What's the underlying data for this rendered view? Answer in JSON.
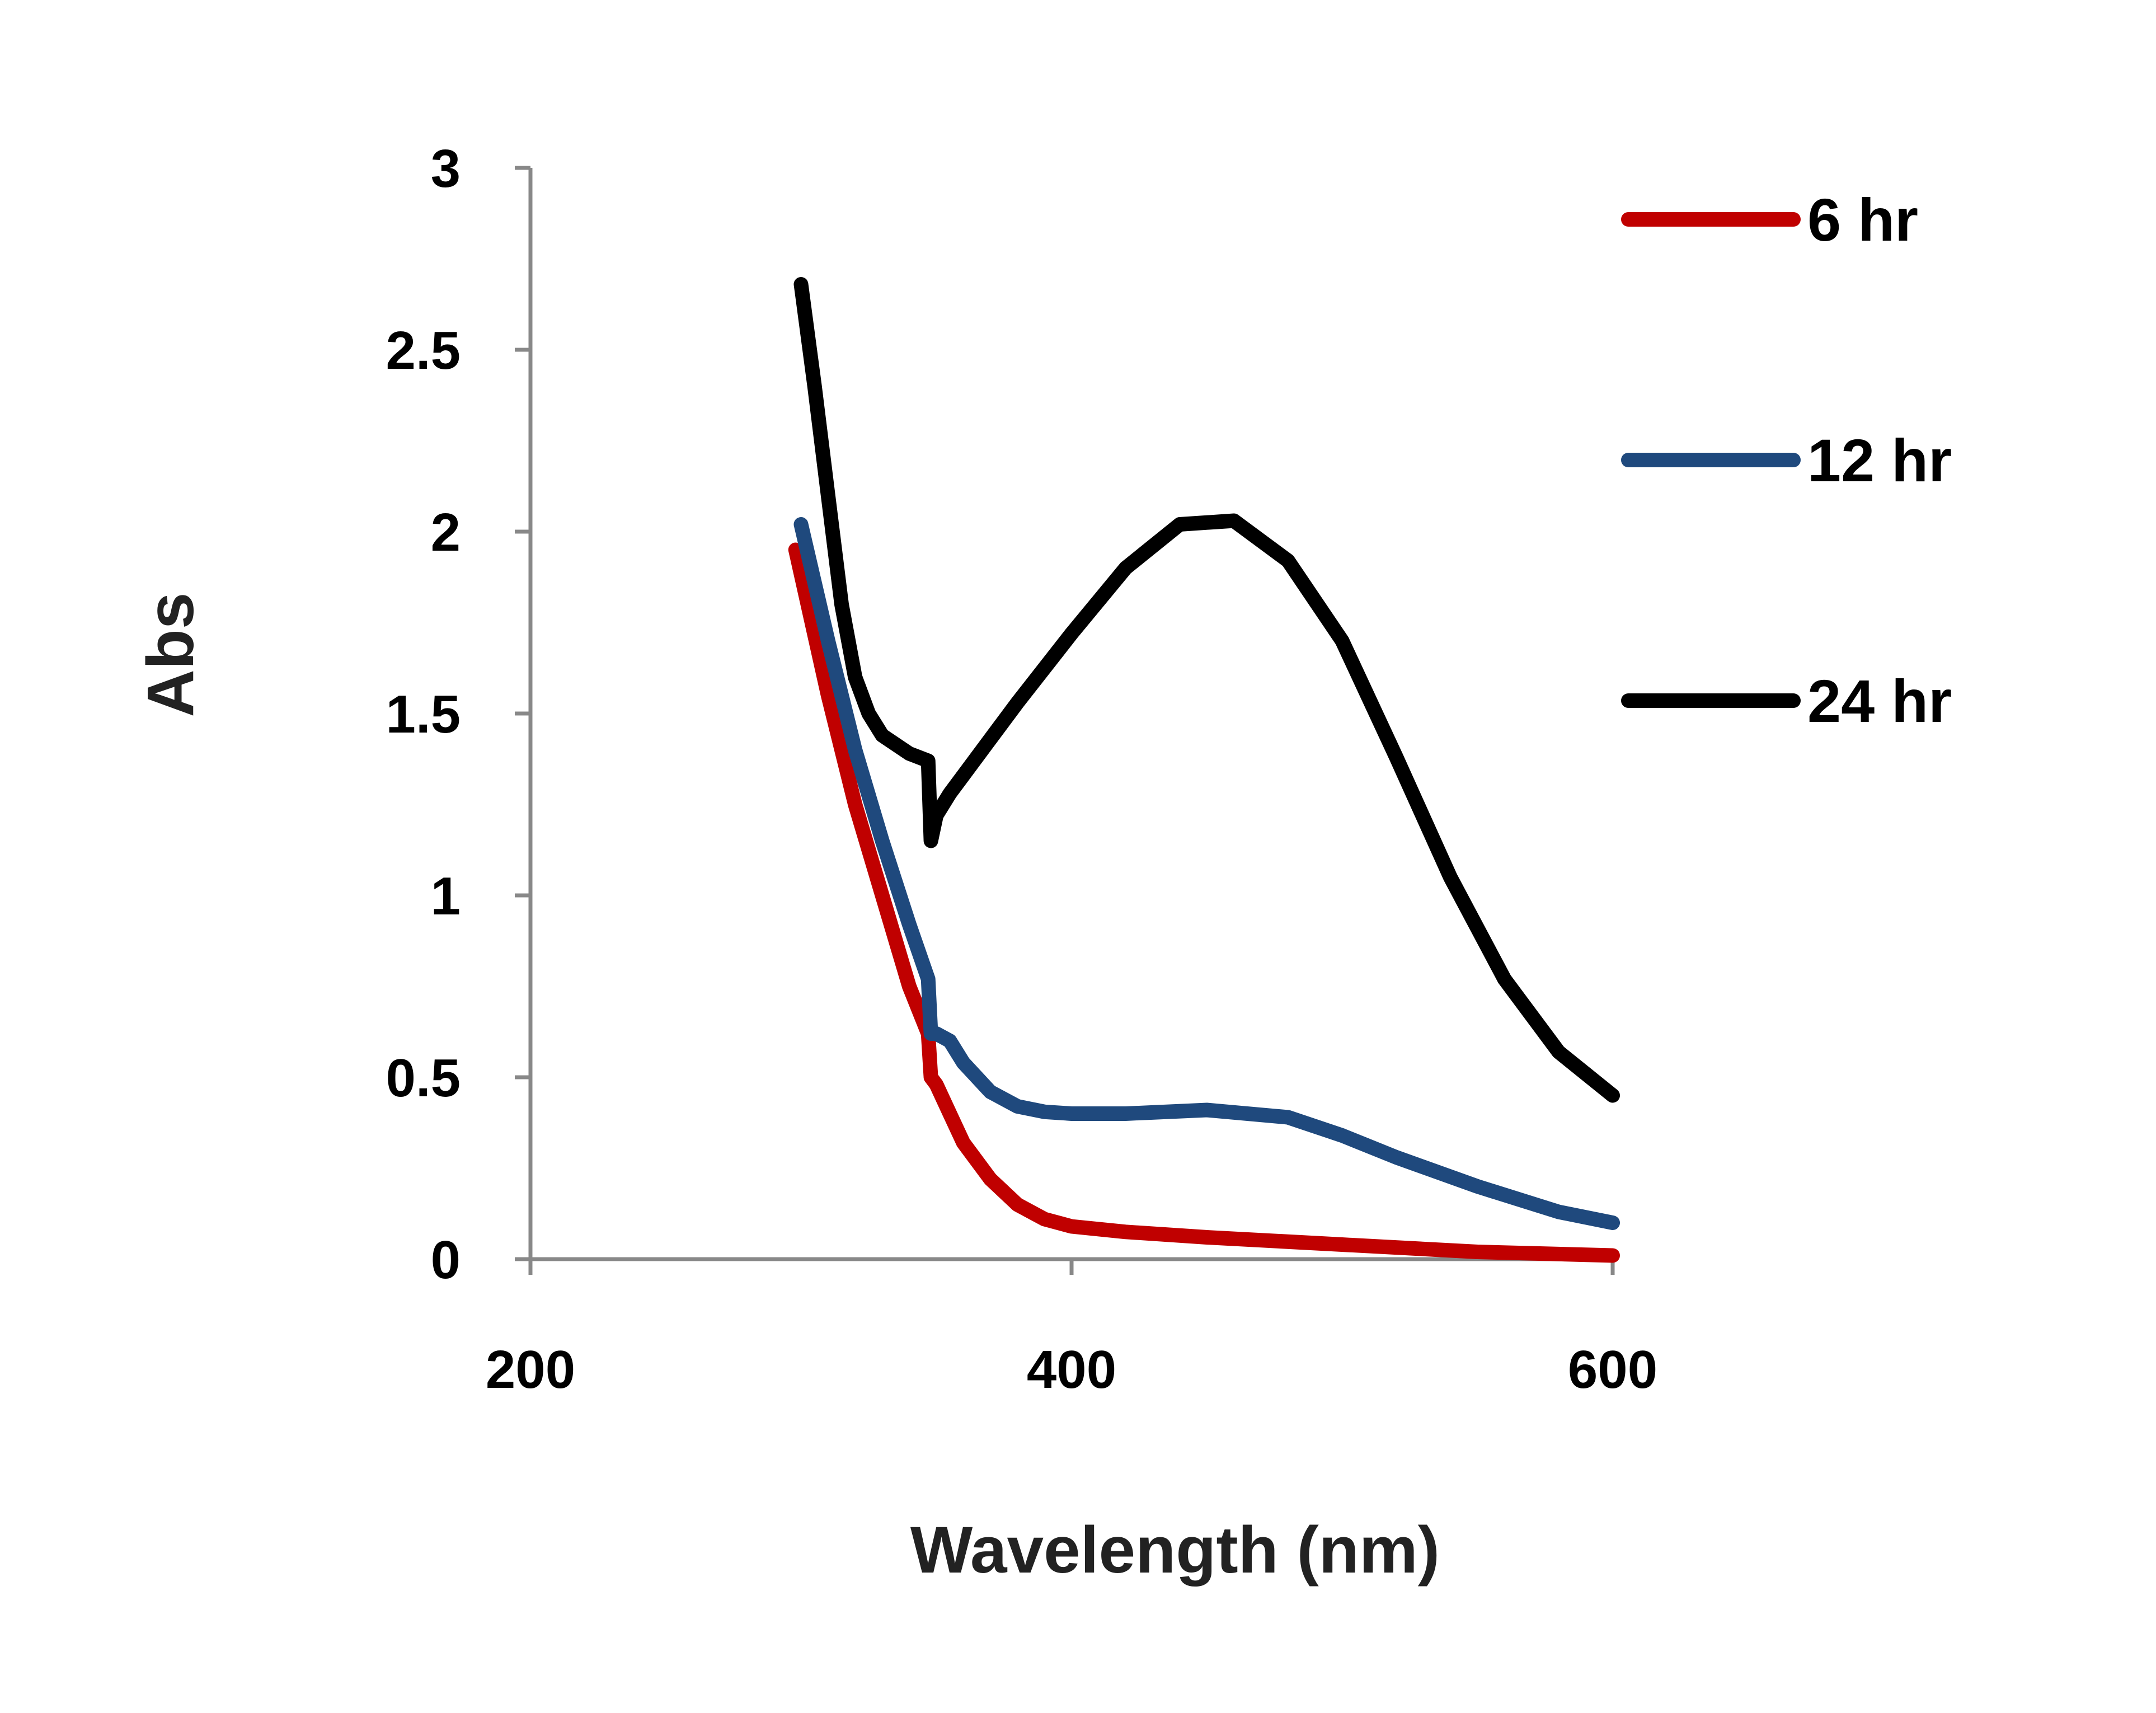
{
  "chart_data": {
    "type": "line",
    "title": "",
    "xlabel": "Wavelength (nm)",
    "ylabel": "Abs",
    "xlim": [
      200,
      600
    ],
    "ylim": [
      0,
      3
    ],
    "x_ticks": [
      200,
      400,
      600
    ],
    "x_tick_labels": [
      "200",
      "400",
      "600"
    ],
    "y_ticks": [
      0,
      0.5,
      1,
      1.5,
      2,
      2.5,
      3
    ],
    "y_tick_labels": [
      "0",
      "0.5",
      "1",
      "1.5",
      "2",
      "2.5",
      "3"
    ],
    "grid": false,
    "legend_position": "top-right",
    "series": [
      {
        "name": "6 hr",
        "color": "#c00000",
        "x": [
          298,
          310,
          320,
          330,
          340,
          347,
          348,
          350,
          355,
          360,
          370,
          380,
          390,
          400,
          420,
          450,
          500,
          550,
          600
        ],
        "y": [
          1.95,
          1.55,
          1.25,
          1.0,
          0.75,
          0.62,
          0.5,
          0.48,
          0.4,
          0.32,
          0.22,
          0.15,
          0.11,
          0.09,
          0.075,
          0.06,
          0.04,
          0.02,
          0.01
        ]
      },
      {
        "name": "12 hr",
        "color": "#1f497d",
        "x": [
          300,
          310,
          320,
          330,
          340,
          347,
          348,
          350,
          355,
          360,
          370,
          380,
          390,
          400,
          420,
          450,
          480,
          500,
          520,
          550,
          580,
          600
        ],
        "y": [
          2.02,
          1.7,
          1.4,
          1.15,
          0.92,
          0.77,
          0.62,
          0.62,
          0.6,
          0.54,
          0.46,
          0.42,
          0.405,
          0.4,
          0.4,
          0.41,
          0.39,
          0.34,
          0.28,
          0.2,
          0.13,
          0.1
        ]
      },
      {
        "name": "24 hr",
        "color": "#000000",
        "x": [
          300,
          305,
          310,
          315,
          320,
          325,
          330,
          340,
          347,
          348,
          350,
          355,
          360,
          370,
          380,
          400,
          420,
          440,
          460,
          480,
          500,
          520,
          540,
          560,
          580,
          600
        ],
        "y": [
          2.68,
          2.4,
          2.1,
          1.8,
          1.6,
          1.5,
          1.44,
          1.39,
          1.37,
          1.15,
          1.22,
          1.28,
          1.33,
          1.43,
          1.53,
          1.72,
          1.9,
          2.02,
          2.03,
          1.92,
          1.7,
          1.38,
          1.05,
          0.77,
          0.57,
          0.45
        ]
      }
    ]
  }
}
